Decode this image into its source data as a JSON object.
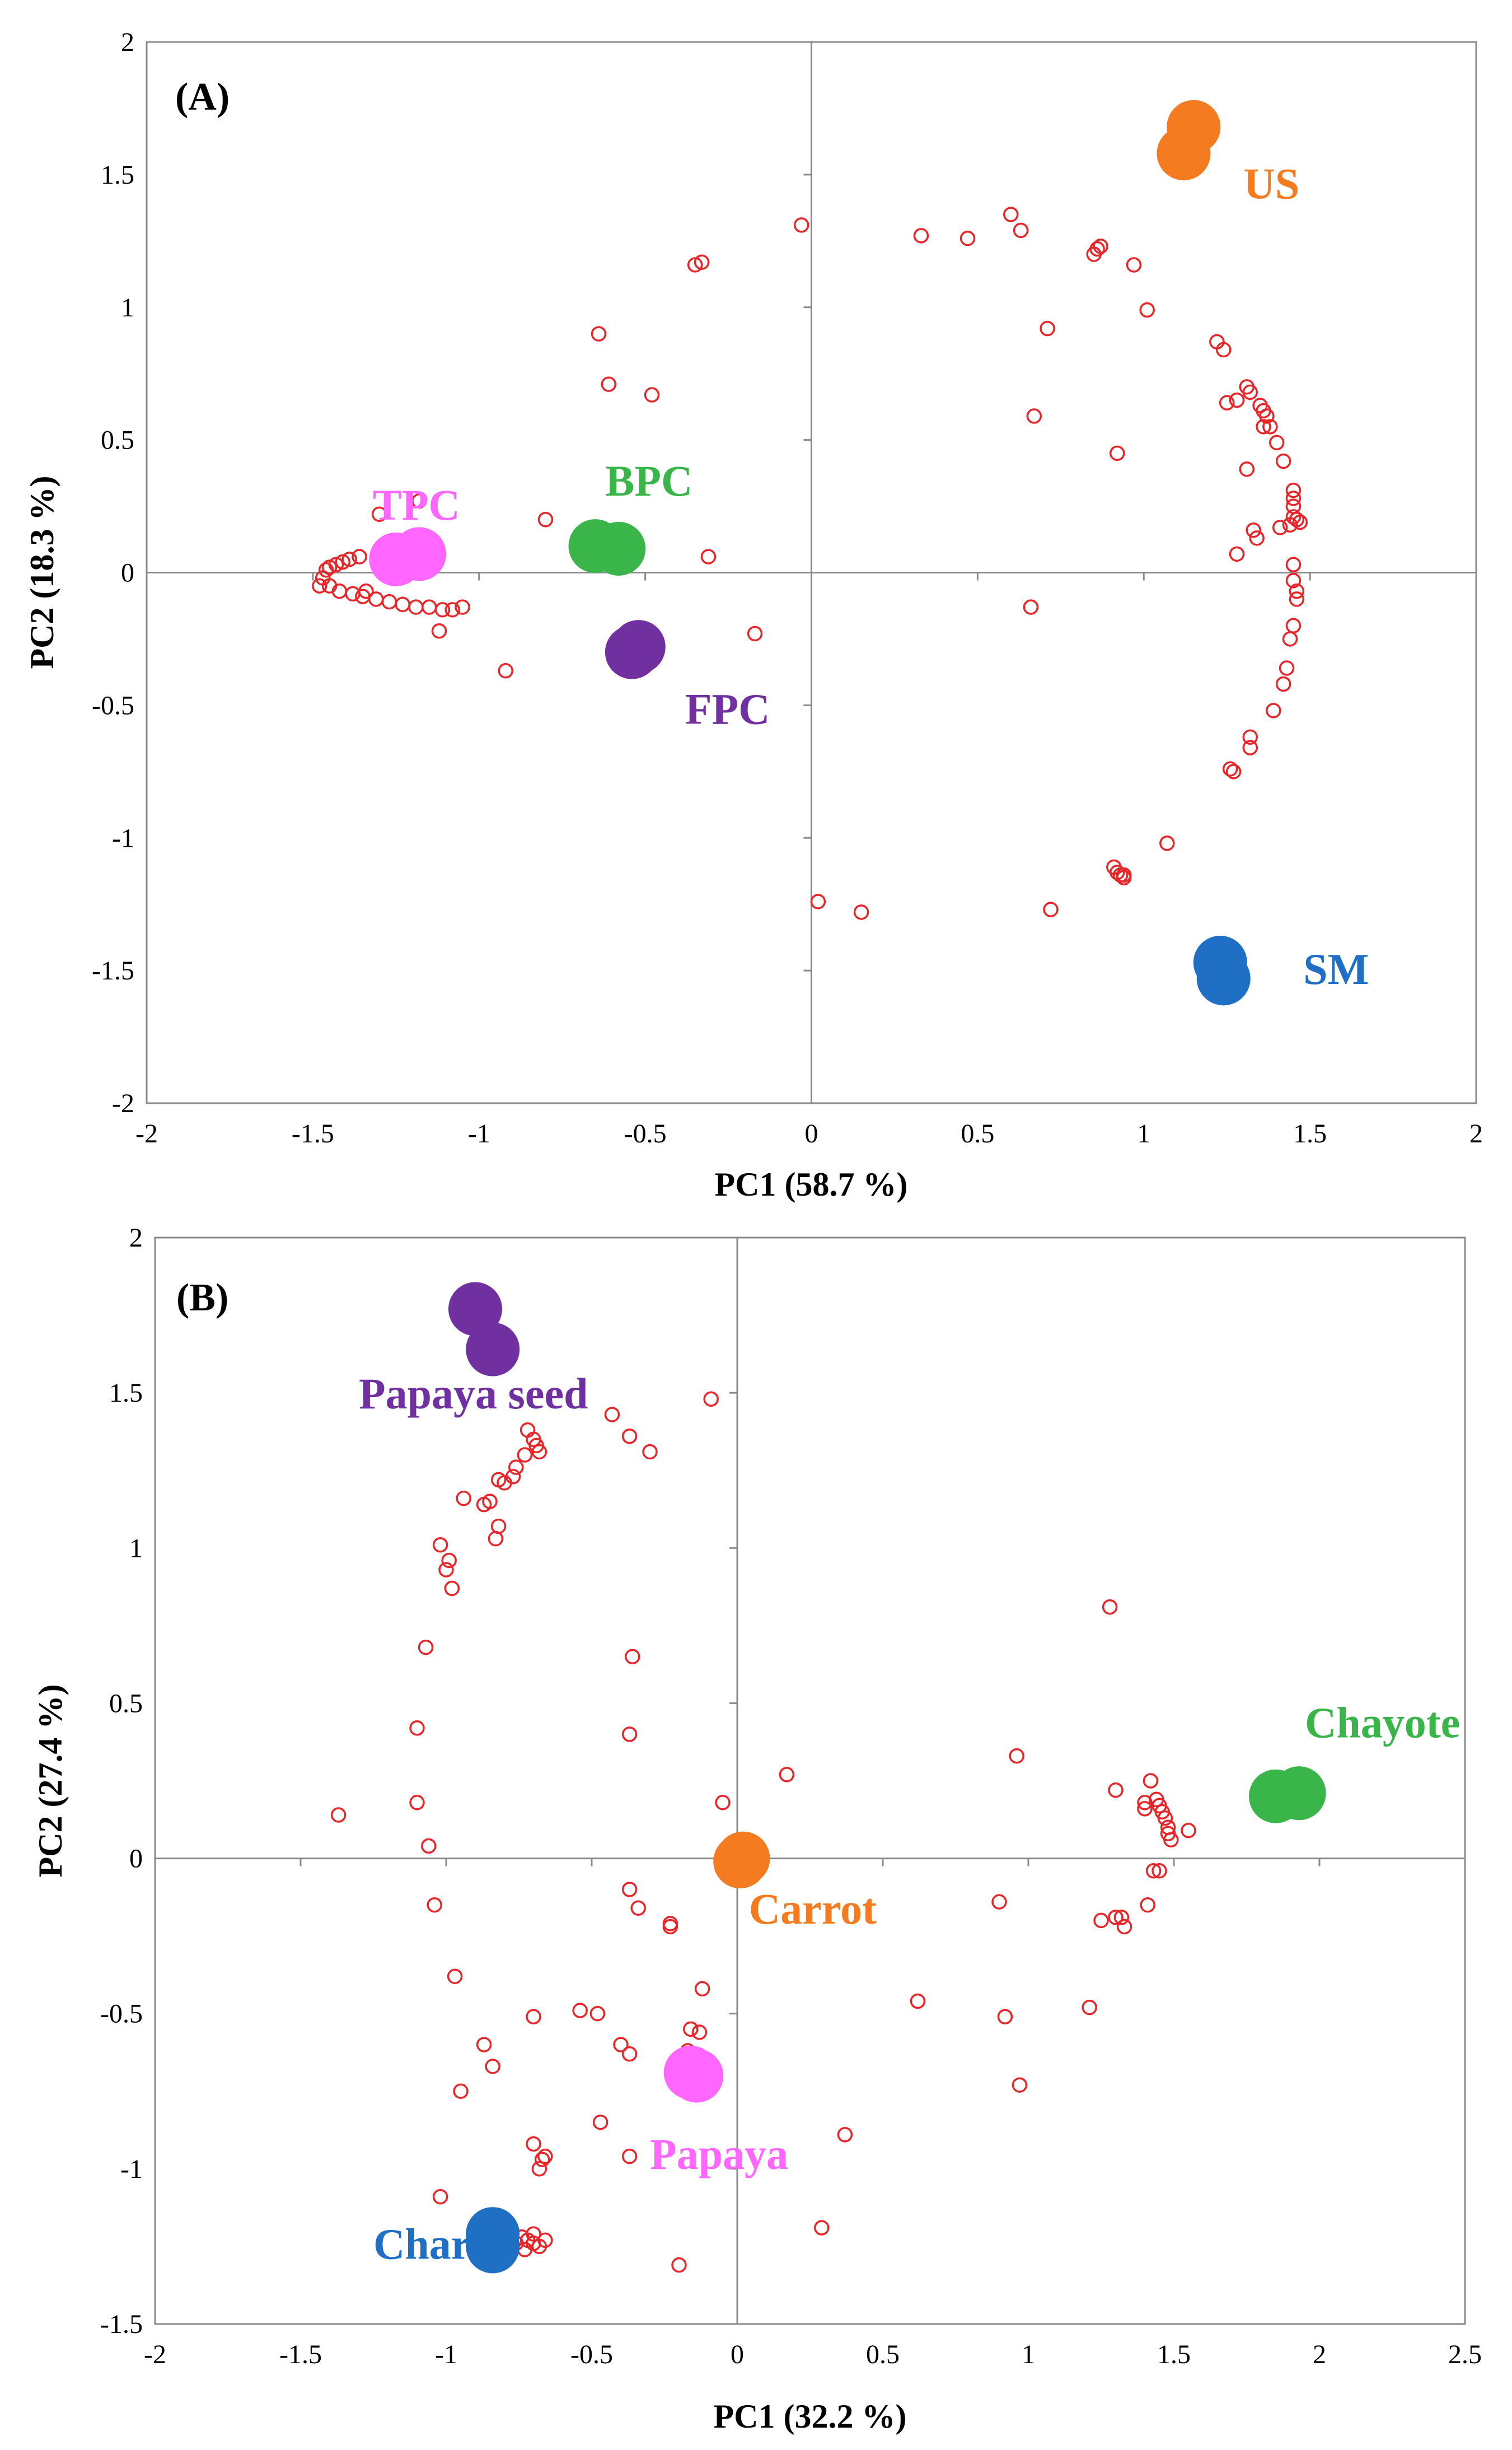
{
  "chart_data": [
    {
      "panel": "(A)",
      "type": "scatter",
      "xlabel": "PC1 (58.7 %)",
      "ylabel": "PC2 (18.3 %)",
      "xlim": [
        -2,
        2
      ],
      "ylim": [
        -2,
        2
      ],
      "xticks": [
        -2,
        -1.5,
        -1,
        -0.5,
        0,
        0.5,
        1,
        1.5,
        2
      ],
      "yticks": [
        -2,
        -1.5,
        -1,
        -0.5,
        0,
        0.5,
        1,
        1.5,
        2
      ],
      "xtick_labels": [
        "-2",
        "-1.5",
        "-1",
        "-0.5",
        "0",
        "0.5",
        "1",
        "1.5",
        "2"
      ],
      "ytick_labels": [
        "-2",
        "-1.5",
        "-1",
        "-0.5",
        "0",
        "0.5",
        "1",
        "1.5",
        "2"
      ],
      "grid": false,
      "loadings_color": "#e8262a",
      "loadings": [
        [
          -0.03,
          1.31
        ],
        [
          -0.35,
          1.16
        ],
        [
          -0.33,
          1.17
        ],
        [
          -0.64,
          0.9
        ],
        [
          -0.61,
          0.71
        ],
        [
          -0.48,
          0.67
        ],
        [
          -0.8,
          0.2
        ],
        [
          -0.31,
          0.06
        ],
        [
          -0.17,
          -0.23
        ],
        [
          -0.92,
          -0.37
        ],
        [
          -1.3,
          0.22
        ],
        [
          -1.18,
          0.27
        ],
        [
          -1.12,
          -0.22
        ],
        [
          -1.48,
          -0.05
        ],
        [
          -1.47,
          -0.02
        ],
        [
          -1.46,
          0.01
        ],
        [
          -1.45,
          0.02
        ],
        [
          -1.43,
          0.03
        ],
        [
          -1.41,
          0.04
        ],
        [
          -1.39,
          0.05
        ],
        [
          -1.36,
          0.06
        ],
        [
          -1.45,
          -0.05
        ],
        [
          -1.42,
          -0.07
        ],
        [
          -1.38,
          -0.08
        ],
        [
          -1.35,
          -0.09
        ],
        [
          -1.31,
          -0.1
        ],
        [
          -1.27,
          -0.11
        ],
        [
          -1.23,
          -0.12
        ],
        [
          -1.19,
          -0.13
        ],
        [
          -1.15,
          -0.13
        ],
        [
          -1.11,
          -0.14
        ],
        [
          -1.08,
          -0.14
        ],
        [
          -1.05,
          -0.13
        ],
        [
          -1.34,
          -0.07
        ],
        [
          0.33,
          1.27
        ],
        [
          0.47,
          1.26
        ],
        [
          0.6,
          1.35
        ],
        [
          0.63,
          1.29
        ],
        [
          0.85,
          1.2
        ],
        [
          0.86,
          1.22
        ],
        [
          0.87,
          1.23
        ],
        [
          0.97,
          1.16
        ],
        [
          1.01,
          0.99
        ],
        [
          0.71,
          0.92
        ],
        [
          0.67,
          0.59
        ],
        [
          0.92,
          0.45
        ],
        [
          0.66,
          -0.13
        ],
        [
          1.22,
          0.87
        ],
        [
          1.24,
          0.84
        ],
        [
          1.31,
          0.7
        ],
        [
          1.32,
          0.68
        ],
        [
          1.25,
          0.64
        ],
        [
          1.28,
          0.65
        ],
        [
          1.35,
          0.63
        ],
        [
          1.36,
          0.61
        ],
        [
          1.37,
          0.59
        ],
        [
          1.38,
          0.55
        ],
        [
          1.36,
          0.55
        ],
        [
          1.4,
          0.49
        ],
        [
          1.42,
          0.42
        ],
        [
          1.31,
          0.39
        ],
        [
          1.45,
          0.31
        ],
        [
          1.45,
          0.28
        ],
        [
          1.45,
          0.25
        ],
        [
          1.45,
          0.21
        ],
        [
          1.46,
          0.2
        ],
        [
          1.47,
          0.19
        ],
        [
          1.44,
          0.18
        ],
        [
          1.41,
          0.17
        ],
        [
          1.33,
          0.16
        ],
        [
          1.34,
          0.13
        ],
        [
          1.28,
          0.07
        ],
        [
          1.45,
          0.03
        ],
        [
          1.45,
          -0.03
        ],
        [
          1.46,
          -0.07
        ],
        [
          1.46,
          -0.1
        ],
        [
          1.45,
          -0.2
        ],
        [
          1.44,
          -0.25
        ],
        [
          1.43,
          -0.36
        ],
        [
          1.42,
          -0.42
        ],
        [
          1.39,
          -0.52
        ],
        [
          1.32,
          -0.62
        ],
        [
          1.32,
          -0.66
        ],
        [
          1.26,
          -0.74
        ],
        [
          1.27,
          -0.75
        ],
        [
          1.07,
          -1.02
        ],
        [
          0.91,
          -1.11
        ],
        [
          0.92,
          -1.13
        ],
        [
          0.93,
          -1.14
        ],
        [
          0.94,
          -1.14
        ],
        [
          0.94,
          -1.15
        ],
        [
          0.72,
          -1.27
        ],
        [
          0.02,
          -1.24
        ],
        [
          0.15,
          -1.28
        ]
      ],
      "groups": [
        {
          "name": "TPC",
          "color": "#ff66ff",
          "points": [
            [
              -1.25,
              0.05
            ],
            [
              -1.18,
              0.07
            ]
          ],
          "label_pos": [
            -1.32,
            0.2
          ]
        },
        {
          "name": "BPC",
          "color": "#3ab54a",
          "points": [
            [
              -0.65,
              0.1
            ],
            [
              -0.58,
              0.09
            ]
          ],
          "label_pos": [
            -0.62,
            0.29
          ]
        },
        {
          "name": "FPC",
          "color": "#7030a0",
          "points": [
            [
              -0.54,
              -0.3
            ],
            [
              -0.52,
              -0.28
            ]
          ],
          "label_pos": [
            -0.38,
            -0.57
          ]
        },
        {
          "name": "US",
          "color": "#f47b20",
          "points": [
            [
              1.15,
              1.68
            ],
            [
              1.12,
              1.58
            ]
          ],
          "label_pos": [
            1.3,
            1.41
          ]
        },
        {
          "name": "SM",
          "color": "#1f6fc5",
          "points": [
            [
              1.23,
              -1.47
            ],
            [
              1.24,
              -1.53
            ]
          ],
          "label_pos": [
            1.48,
            -1.55
          ]
        }
      ]
    },
    {
      "panel": "(B)",
      "type": "scatter",
      "xlabel": "PC1 (32.2 %)",
      "ylabel": "PC2 (27.4 %)",
      "xlim": [
        -2,
        2.5
      ],
      "ylim": [
        -1.5,
        2
      ],
      "xticks": [
        -2,
        -1.5,
        -1,
        -0.5,
        0,
        0.5,
        1,
        1.5,
        2,
        2.5
      ],
      "yticks": [
        -1.5,
        -1,
        -0.5,
        0,
        0.5,
        1,
        1.5,
        2
      ],
      "xtick_labels": [
        "-2",
        "-1.5",
        "-1",
        "-0.5",
        "0",
        "0.5",
        "1",
        "1.5",
        "2",
        "2.5"
      ],
      "ytick_labels": [
        "-1.5",
        "-1",
        "-0.5",
        "0",
        "0.5",
        "1",
        "1.5",
        "2"
      ],
      "grid": false,
      "loadings_color": "#e8262a",
      "loadings": [
        [
          -0.72,
          1.38
        ],
        [
          -0.7,
          1.35
        ],
        [
          -0.69,
          1.33
        ],
        [
          -0.68,
          1.31
        ],
        [
          -0.73,
          1.3
        ],
        [
          -0.76,
          1.26
        ],
        [
          -0.77,
          1.23
        ],
        [
          -0.8,
          1.21
        ],
        [
          -0.82,
          1.22
        ],
        [
          -0.85,
          1.15
        ],
        [
          -0.87,
          1.14
        ],
        [
          -0.94,
          1.16
        ],
        [
          -0.82,
          1.07
        ],
        [
          -0.83,
          1.03
        ],
        [
          -1.02,
          1.01
        ],
        [
          -0.99,
          0.96
        ],
        [
          -1.0,
          0.93
        ],
        [
          -0.98,
          0.87
        ],
        [
          -1.07,
          0.68
        ],
        [
          -0.09,
          1.48
        ],
        [
          -0.43,
          1.43
        ],
        [
          -0.37,
          1.36
        ],
        [
          -0.3,
          1.31
        ],
        [
          -0.36,
          0.65
        ],
        [
          -0.37,
          0.4
        ],
        [
          -1.1,
          0.42
        ],
        [
          -1.37,
          0.14
        ],
        [
          -1.1,
          0.18
        ],
        [
          -1.06,
          0.04
        ],
        [
          -1.04,
          -0.15
        ],
        [
          -0.97,
          -0.38
        ],
        [
          -0.37,
          -0.1
        ],
        [
          -0.34,
          -0.16
        ],
        [
          -0.23,
          -0.22
        ],
        [
          -0.23,
          -0.21
        ],
        [
          -0.05,
          0.18
        ],
        [
          0.07,
          0.01
        ],
        [
          0.17,
          0.27
        ],
        [
          -0.48,
          -0.5
        ],
        [
          -0.54,
          -0.49
        ],
        [
          -0.4,
          -0.6
        ],
        [
          -0.37,
          -0.63
        ],
        [
          -0.16,
          -0.55
        ],
        [
          -0.13,
          -0.56
        ],
        [
          -0.17,
          -0.62
        ],
        [
          -0.12,
          -0.42
        ],
        [
          -0.87,
          -0.6
        ],
        [
          -0.84,
          -0.67
        ],
        [
          -0.7,
          -0.51
        ],
        [
          -0.95,
          -0.75
        ],
        [
          -0.47,
          -0.85
        ],
        [
          -0.37,
          -0.96
        ],
        [
          -0.7,
          -0.92
        ],
        [
          -0.66,
          -0.96
        ],
        [
          -0.67,
          -0.97
        ],
        [
          -0.68,
          -1.0
        ],
        [
          -1.02,
          -1.09
        ],
        [
          -0.2,
          -1.31
        ],
        [
          0.29,
          -1.19
        ],
        [
          0.37,
          -0.89
        ],
        [
          -0.74,
          -1.22
        ],
        [
          -0.72,
          -1.23
        ],
        [
          -0.7,
          -1.24
        ],
        [
          -0.68,
          -1.25
        ],
        [
          -0.73,
          -1.26
        ],
        [
          -0.7,
          -1.21
        ],
        [
          -0.66,
          -1.23
        ],
        [
          -0.76,
          -1.24
        ],
        [
          0.62,
          -0.46
        ],
        [
          0.9,
          -0.14
        ],
        [
          0.92,
          -0.51
        ],
        [
          0.97,
          -0.73
        ],
        [
          0.96,
          0.33
        ],
        [
          1.28,
          0.81
        ],
        [
          1.3,
          0.22
        ],
        [
          1.42,
          0.25
        ],
        [
          1.44,
          0.19
        ],
        [
          1.45,
          0.17
        ],
        [
          1.46,
          0.15
        ],
        [
          1.47,
          0.13
        ],
        [
          1.48,
          0.1
        ],
        [
          1.48,
          0.08
        ],
        [
          1.49,
          0.06
        ],
        [
          1.55,
          0.09
        ],
        [
          1.4,
          0.18
        ],
        [
          1.4,
          0.16
        ],
        [
          1.43,
          -0.04
        ],
        [
          1.45,
          -0.04
        ],
        [
          1.41,
          -0.15
        ],
        [
          1.3,
          -0.19
        ],
        [
          1.32,
          -0.19
        ],
        [
          1.33,
          -0.22
        ],
        [
          1.25,
          -0.2
        ],
        [
          1.21,
          -0.48
        ]
      ],
      "groups": [
        {
          "name": "Papaya seed",
          "color": "#7030a0",
          "points": [
            [
              -0.9,
              1.77
            ],
            [
              -0.84,
              1.64
            ]
          ],
          "label_pos": [
            -1.3,
            1.45
          ]
        },
        {
          "name": "Chayote",
          "color": "#3ab54a",
          "points": [
            [
              1.85,
              0.2
            ],
            [
              1.93,
              0.21
            ]
          ],
          "label_pos": [
            1.95,
            0.39
          ]
        },
        {
          "name": "Carrot",
          "color": "#f47b20",
          "points": [
            [
              0.01,
              -0.01
            ],
            [
              0.02,
              0.0
            ]
          ],
          "label_pos": [
            0.04,
            -0.21
          ]
        },
        {
          "name": "Papaya",
          "color": "#ff66ff",
          "points": [
            [
              -0.16,
              -0.69
            ],
            [
              -0.14,
              -0.7
            ]
          ],
          "label_pos": [
            -0.3,
            -1.0
          ]
        },
        {
          "name": "Chard",
          "color": "#1f6fc5",
          "points": [
            [
              -0.84,
              -1.21
            ],
            [
              -0.84,
              -1.25
            ]
          ],
          "label_pos": [
            -1.25,
            -1.29
          ]
        }
      ]
    }
  ]
}
